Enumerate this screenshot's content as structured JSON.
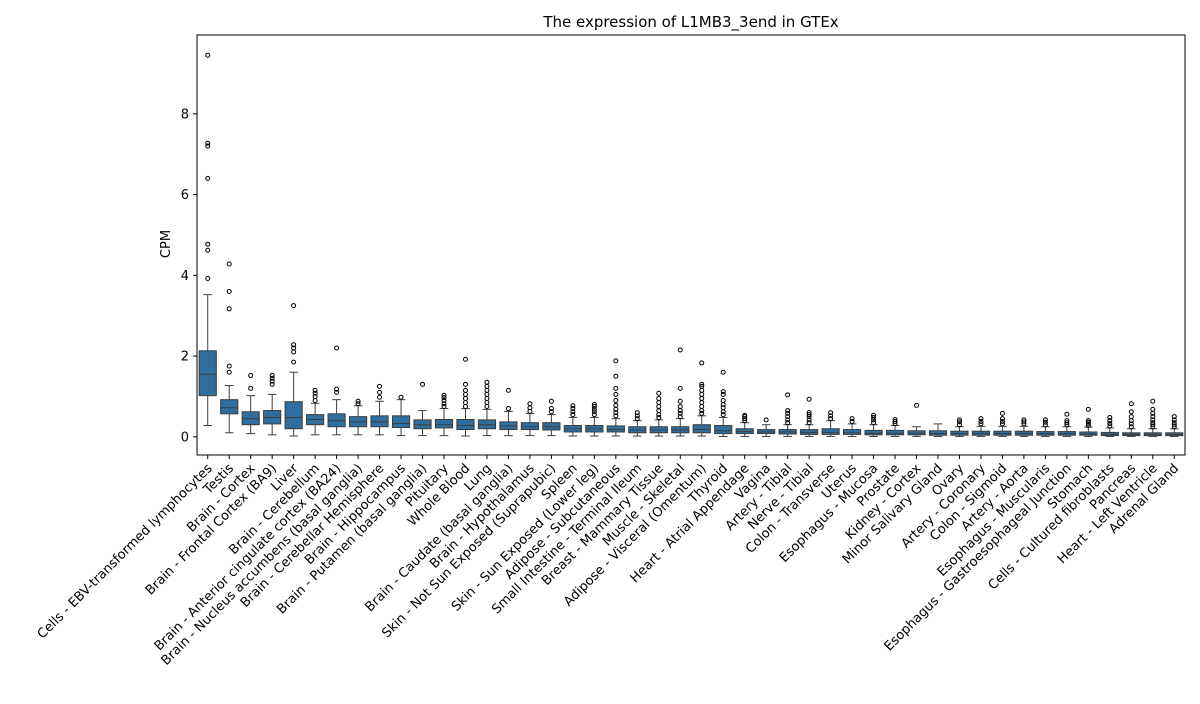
{
  "chart_data": {
    "type": "box",
    "title": "The expression of L1MB3_3end in GTEx",
    "xlabel": "",
    "ylabel": "CPM",
    "ylim": [
      -0.45,
      9.95
    ],
    "yticks": [
      0,
      2,
      4,
      6,
      8
    ],
    "grid": false,
    "box_color": "#2e6e9e",
    "categories": [
      "Cells - EBV-transformed lymphocytes",
      "Testis",
      "Brain - Cortex",
      "Brain - Frontal Cortex (BA9)",
      "Liver",
      "Brain - Cerebellum",
      "Brain - Anterior cingulate cortex (BA24)",
      "Brain - Nucleus accumbens (basal ganglia)",
      "Brain - Cerebellar Hemisphere",
      "Brain - Hippocampus",
      "Brain - Putamen (basal ganglia)",
      "Pituitary",
      "Whole Blood",
      "Lung",
      "Brain - Caudate (basal ganglia)",
      "Brain - Hypothalamus",
      "Skin - Not Sun Exposed (Suprapubic)",
      "Spleen",
      "Skin - Sun Exposed (Lower leg)",
      "Adipose - Subcutaneous",
      "Small Intestine - Terminal Ileum",
      "Breast - Mammary Tissue",
      "Muscle - Skeletal",
      "Adipose - Visceral (Omentum)",
      "Thyroid",
      "Heart - Atrial Appendage",
      "Vagina",
      "Artery - Tibial",
      "Nerve - Tibial",
      "Colon - Transverse",
      "Uterus",
      "Esophagus - Mucosa",
      "Prostate",
      "Kidney - Cortex",
      "Minor Salivary Gland",
      "Ovary",
      "Artery - Coronary",
      "Colon - Sigmoid",
      "Artery - Aorta",
      "Esophagus - Muscularis",
      "Esophagus - Gastroesophageal Junction",
      "Stomach",
      "Cells - Cultured fibroblasts",
      "Pancreas",
      "Heart - Left Ventricle",
      "Adrenal Gland"
    ],
    "boxes": [
      {
        "whislo": 0.28,
        "q1": 1.02,
        "med": 1.55,
        "q3": 2.13,
        "whishi": 3.52,
        "fliers": [
          3.92,
          4.62,
          4.77,
          6.4,
          7.2,
          7.27,
          9.45
        ]
      },
      {
        "whislo": 0.1,
        "q1": 0.57,
        "med": 0.72,
        "q3": 0.92,
        "whishi": 1.27,
        "fliers": [
          1.6,
          1.75,
          3.17,
          3.6,
          4.28
        ]
      },
      {
        "whislo": 0.08,
        "q1": 0.3,
        "med": 0.45,
        "q3": 0.62,
        "whishi": 1.02,
        "fliers": [
          1.2,
          1.52
        ]
      },
      {
        "whislo": 0.05,
        "q1": 0.32,
        "med": 0.48,
        "q3": 0.65,
        "whishi": 1.05,
        "fliers": [
          1.3,
          1.38,
          1.45,
          1.52
        ]
      },
      {
        "whislo": 0.02,
        "q1": 0.2,
        "med": 0.48,
        "q3": 0.87,
        "whishi": 1.6,
        "fliers": [
          1.85,
          2.1,
          2.2,
          2.28,
          3.25
        ]
      },
      {
        "whislo": 0.05,
        "q1": 0.3,
        "med": 0.43,
        "q3": 0.55,
        "whishi": 0.83,
        "fliers": [
          0.9,
          1.0,
          1.08,
          1.15
        ]
      },
      {
        "whislo": 0.05,
        "q1": 0.25,
        "med": 0.4,
        "q3": 0.57,
        "whishi": 0.92,
        "fliers": [
          1.1,
          1.18,
          2.2
        ]
      },
      {
        "whislo": 0.05,
        "q1": 0.25,
        "med": 0.37,
        "q3": 0.5,
        "whishi": 0.77,
        "fliers": [
          0.82,
          0.88
        ]
      },
      {
        "whislo": 0.05,
        "q1": 0.25,
        "med": 0.37,
        "q3": 0.52,
        "whishi": 0.88,
        "fliers": [
          0.98,
          1.1,
          1.25
        ]
      },
      {
        "whislo": 0.03,
        "q1": 0.23,
        "med": 0.33,
        "q3": 0.52,
        "whishi": 0.92,
        "fliers": [
          0.98
        ]
      },
      {
        "whislo": 0.03,
        "q1": 0.2,
        "med": 0.3,
        "q3": 0.42,
        "whishi": 0.65,
        "fliers": [
          1.3
        ]
      },
      {
        "whislo": 0.03,
        "q1": 0.22,
        "med": 0.3,
        "q3": 0.43,
        "whishi": 0.7,
        "fliers": [
          0.75,
          0.82,
          0.9,
          0.97,
          1.03
        ]
      },
      {
        "whislo": 0.02,
        "q1": 0.18,
        "med": 0.28,
        "q3": 0.43,
        "whishi": 0.7,
        "fliers": [
          0.75,
          0.85,
          0.95,
          1.05,
          1.15,
          1.3,
          1.92
        ]
      },
      {
        "whislo": 0.03,
        "q1": 0.2,
        "med": 0.3,
        "q3": 0.42,
        "whishi": 0.68,
        "fliers": [
          0.75,
          0.85,
          0.95,
          1.05,
          1.15,
          1.25,
          1.35
        ]
      },
      {
        "whislo": 0.03,
        "q1": 0.18,
        "med": 0.27,
        "q3": 0.37,
        "whishi": 0.63,
        "fliers": [
          0.7,
          1.15
        ]
      },
      {
        "whislo": 0.03,
        "q1": 0.18,
        "med": 0.25,
        "q3": 0.35,
        "whishi": 0.58,
        "fliers": [
          0.63,
          0.72,
          0.82
        ]
      },
      {
        "whislo": 0.03,
        "q1": 0.17,
        "med": 0.25,
        "q3": 0.35,
        "whishi": 0.55,
        "fliers": [
          0.62,
          0.7,
          0.88
        ]
      },
      {
        "whislo": 0.02,
        "q1": 0.12,
        "med": 0.2,
        "q3": 0.28,
        "whishi": 0.48,
        "fliers": [
          0.55,
          0.62,
          0.7,
          0.77
        ]
      },
      {
        "whislo": 0.02,
        "q1": 0.12,
        "med": 0.2,
        "q3": 0.28,
        "whishi": 0.48,
        "fliers": [
          0.55,
          0.62,
          0.68,
          0.75,
          0.8
        ]
      },
      {
        "whislo": 0.02,
        "q1": 0.12,
        "med": 0.18,
        "q3": 0.27,
        "whishi": 0.45,
        "fliers": [
          0.52,
          0.6,
          0.68,
          0.78,
          0.9,
          1.05,
          1.2,
          1.5,
          1.88
        ]
      },
      {
        "whislo": 0.02,
        "q1": 0.1,
        "med": 0.17,
        "q3": 0.25,
        "whishi": 0.4,
        "fliers": [
          0.45,
          0.52,
          0.6
        ]
      },
      {
        "whislo": 0.02,
        "q1": 0.1,
        "med": 0.17,
        "q3": 0.25,
        "whishi": 0.42,
        "fliers": [
          0.48,
          0.55,
          0.65,
          0.75,
          0.85,
          0.95,
          1.08
        ]
      },
      {
        "whislo": 0.02,
        "q1": 0.1,
        "med": 0.17,
        "q3": 0.25,
        "whishi": 0.45,
        "fliers": [
          0.5,
          0.58,
          0.65,
          0.75,
          0.88,
          1.2,
          2.15
        ]
      },
      {
        "whislo": 0.02,
        "q1": 0.1,
        "med": 0.18,
        "q3": 0.3,
        "whishi": 0.52,
        "fliers": [
          0.58,
          0.65,
          0.75,
          0.85,
          0.95,
          1.05,
          1.15,
          1.25,
          1.3,
          1.83
        ]
      },
      {
        "whislo": 0.01,
        "q1": 0.08,
        "med": 0.15,
        "q3": 0.28,
        "whishi": 0.48,
        "fliers": [
          0.55,
          0.62,
          0.72,
          0.8,
          0.9,
          1.05,
          1.12,
          1.6
        ]
      },
      {
        "whislo": 0.01,
        "q1": 0.08,
        "med": 0.13,
        "q3": 0.2,
        "whishi": 0.35,
        "fliers": [
          0.4,
          0.45,
          0.5,
          0.53
        ]
      },
      {
        "whislo": 0.01,
        "q1": 0.08,
        "med": 0.12,
        "q3": 0.18,
        "whishi": 0.3,
        "fliers": [
          0.42
        ]
      },
      {
        "whislo": 0.01,
        "q1": 0.07,
        "med": 0.12,
        "q3": 0.18,
        "whishi": 0.3,
        "fliers": [
          0.35,
          0.42,
          0.5,
          0.58,
          0.65,
          1.04
        ]
      },
      {
        "whislo": 0.01,
        "q1": 0.06,
        "med": 0.11,
        "q3": 0.18,
        "whishi": 0.3,
        "fliers": [
          0.35,
          0.42,
          0.5,
          0.55,
          0.6,
          0.93
        ]
      },
      {
        "whislo": 0.01,
        "q1": 0.06,
        "med": 0.11,
        "q3": 0.2,
        "whishi": 0.4,
        "fliers": [
          0.45,
          0.52,
          0.6
        ]
      },
      {
        "whislo": 0.01,
        "q1": 0.06,
        "med": 0.1,
        "q3": 0.18,
        "whishi": 0.32,
        "fliers": [
          0.38,
          0.45
        ]
      },
      {
        "whislo": 0.01,
        "q1": 0.05,
        "med": 0.09,
        "q3": 0.16,
        "whishi": 0.3,
        "fliers": [
          0.35,
          0.42,
          0.48,
          0.53
        ]
      },
      {
        "whislo": 0.01,
        "q1": 0.05,
        "med": 0.09,
        "q3": 0.16,
        "whishi": 0.28,
        "fliers": [
          0.33,
          0.38,
          0.43
        ]
      },
      {
        "whislo": 0.01,
        "q1": 0.05,
        "med": 0.09,
        "q3": 0.15,
        "whishi": 0.25,
        "fliers": [
          0.78
        ]
      },
      {
        "whislo": 0.01,
        "q1": 0.04,
        "med": 0.08,
        "q3": 0.15,
        "whishi": 0.32,
        "fliers": []
      },
      {
        "whislo": 0.01,
        "q1": 0.04,
        "med": 0.08,
        "q3": 0.14,
        "whishi": 0.25,
        "fliers": [
          0.3,
          0.37,
          0.42
        ]
      },
      {
        "whislo": 0.01,
        "q1": 0.04,
        "med": 0.08,
        "q3": 0.14,
        "whishi": 0.26,
        "fliers": [
          0.32,
          0.38,
          0.45
        ]
      },
      {
        "whislo": 0.01,
        "q1": 0.04,
        "med": 0.08,
        "q3": 0.14,
        "whishi": 0.26,
        "fliers": [
          0.32,
          0.38,
          0.45,
          0.58
        ]
      },
      {
        "whislo": 0.01,
        "q1": 0.04,
        "med": 0.08,
        "q3": 0.14,
        "whishi": 0.26,
        "fliers": [
          0.32,
          0.37,
          0.42
        ]
      },
      {
        "whislo": 0.01,
        "q1": 0.04,
        "med": 0.08,
        "q3": 0.13,
        "whishi": 0.25,
        "fliers": [
          0.3,
          0.36,
          0.42
        ]
      },
      {
        "whislo": 0.01,
        "q1": 0.04,
        "med": 0.08,
        "q3": 0.13,
        "whishi": 0.25,
        "fliers": [
          0.3,
          0.35,
          0.4,
          0.56
        ]
      },
      {
        "whislo": 0.01,
        "q1": 0.04,
        "med": 0.07,
        "q3": 0.12,
        "whishi": 0.24,
        "fliers": [
          0.28,
          0.32,
          0.36,
          0.4,
          0.68
        ]
      },
      {
        "whislo": 0.01,
        "q1": 0.03,
        "med": 0.06,
        "q3": 0.11,
        "whishi": 0.22,
        "fliers": [
          0.27,
          0.33,
          0.4,
          0.48
        ]
      },
      {
        "whislo": 0.01,
        "q1": 0.03,
        "med": 0.06,
        "q3": 0.1,
        "whishi": 0.2,
        "fliers": [
          0.25,
          0.32,
          0.4,
          0.5,
          0.62,
          0.82
        ]
      },
      {
        "whislo": 0.01,
        "q1": 0.03,
        "med": 0.06,
        "q3": 0.1,
        "whishi": 0.2,
        "fliers": [
          0.25,
          0.3,
          0.35,
          0.42,
          0.5,
          0.58,
          0.68,
          0.88
        ]
      },
      {
        "whislo": 0.01,
        "q1": 0.03,
        "med": 0.06,
        "q3": 0.1,
        "whishi": 0.2,
        "fliers": [
          0.25,
          0.3,
          0.35,
          0.42,
          0.5
        ]
      }
    ]
  }
}
